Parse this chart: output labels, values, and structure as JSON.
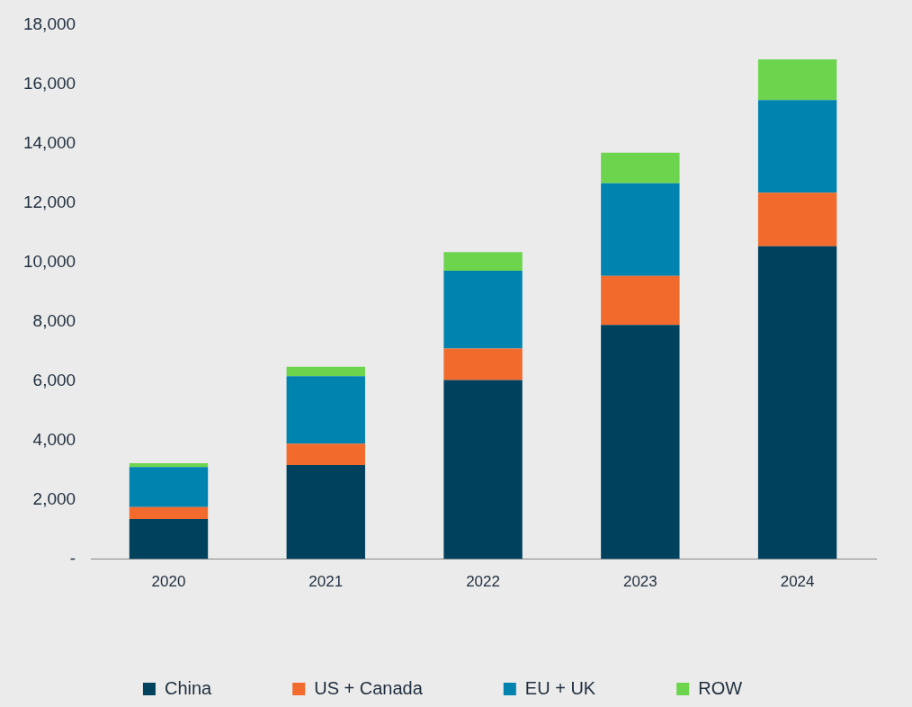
{
  "chart_data": {
    "type": "bar",
    "stacked": true,
    "categories": [
      "2020",
      "2021",
      "2022",
      "2023",
      "2024"
    ],
    "series": [
      {
        "name": "China",
        "color": "#00415e",
        "values": [
          1350,
          3170,
          6030,
          7890,
          10540
        ]
      },
      {
        "name": "US + Canada",
        "color": "#f26a2c",
        "values": [
          400,
          720,
          1060,
          1650,
          1800
        ]
      },
      {
        "name": "EU + UK",
        "color": "#0083ae",
        "values": [
          1350,
          2270,
          2620,
          3120,
          3120
        ]
      },
      {
        "name": "ROW",
        "color": "#6dd44e",
        "values": [
          130,
          320,
          630,
          1030,
          1370
        ]
      }
    ],
    "ylim": [
      0,
      18000
    ],
    "yticks": [
      {
        "value": 0,
        "label": "-"
      },
      {
        "value": 2000,
        "label": "2,000"
      },
      {
        "value": 4000,
        "label": "4,000"
      },
      {
        "value": 6000,
        "label": "6,000"
      },
      {
        "value": 8000,
        "label": "8,000"
      },
      {
        "value": 10000,
        "label": "10,000"
      },
      {
        "value": 12000,
        "label": "12,000"
      },
      {
        "value": 14000,
        "label": "14,000"
      },
      {
        "value": 16000,
        "label": "16,000"
      },
      {
        "value": 18000,
        "label": "18,000"
      }
    ],
    "grid": false,
    "legend": "bottom"
  }
}
